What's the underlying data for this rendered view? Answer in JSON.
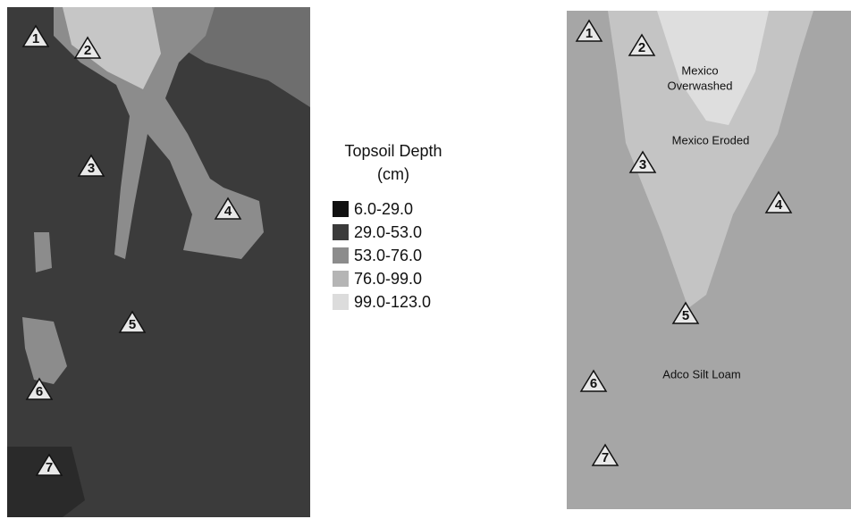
{
  "left_map": {
    "markers": [
      "1",
      "2",
      "3",
      "4",
      "5",
      "6",
      "7"
    ]
  },
  "legend": {
    "title": [
      "Topsoil Depth",
      "(cm)"
    ],
    "items": [
      "6.0-29.0",
      "29.0-53.0",
      "53.0-76.0",
      "76.0-99.0",
      "99.0-123.0"
    ]
  },
  "right_map": {
    "markers": [
      "1",
      "2",
      "3",
      "4",
      "5",
      "6",
      "7"
    ],
    "regions": [
      "Mexico",
      "Overwashed",
      "Mexico Eroded",
      "Adco Silt Loam"
    ]
  }
}
